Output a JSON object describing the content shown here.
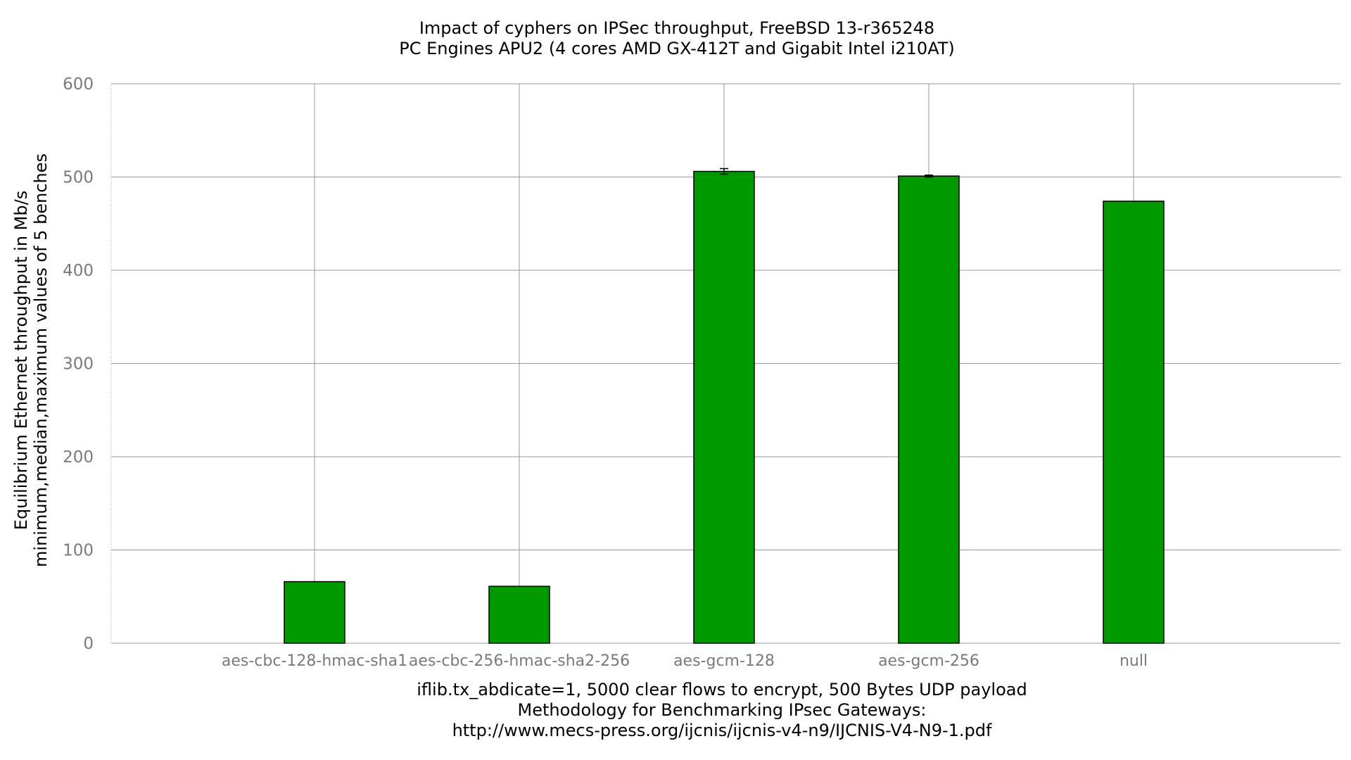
{
  "chart_data": {
    "type": "bar",
    "title": "Impact of cyphers on IPSec throughput, FreeBSD 13-r365248",
    "subtitle": "PC Engines APU2 (4 cores AMD GX-412T and Gigabit Intel i210AT)",
    "ylabel_line1": "Equilibrium Ethernet throughput in Mb/s",
    "ylabel_line2": "minimum,median,maximum values of 5 benches",
    "xlabel_lines": [
      "iflib.tx_abdicate=1, 5000 clear flows to encrypt, 500 Bytes UDP payload",
      "Methodology for Benchmarking IPsec Gateways:",
      "http://www.mecs-press.org/ijcnis/ijcnis-v4-n9/IJCNIS-V4-N9-1.pdf"
    ],
    "categories": [
      "aes-cbc-128-hmac-sha1",
      "aes-cbc-256-hmac-sha2-256",
      "aes-gcm-128",
      "aes-gcm-256",
      "null"
    ],
    "values": [
      66,
      61,
      506,
      501,
      474
    ],
    "error_min": [
      66,
      61,
      503,
      500,
      474
    ],
    "error_max": [
      66,
      61,
      509,
      502,
      474
    ],
    "ylim": [
      0,
      600
    ],
    "yticks": [
      0,
      100,
      200,
      300,
      400,
      500,
      600
    ],
    "grid": true,
    "bar_color": "#009900",
    "bar_edge_color": "#000000"
  }
}
